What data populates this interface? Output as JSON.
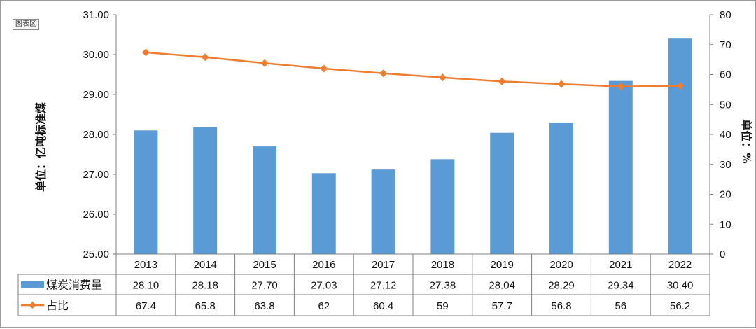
{
  "chart_area_label": "图表区",
  "chart_data": {
    "type": "bar",
    "categories": [
      "2013",
      "2014",
      "2015",
      "2016",
      "2017",
      "2018",
      "2019",
      "2020",
      "2021",
      "2022"
    ],
    "series": [
      {
        "name": "煤炭消费量",
        "type": "bar",
        "axis": "left",
        "color": "#5b9bd5",
        "values": [
          28.1,
          28.18,
          27.7,
          27.03,
          27.12,
          27.38,
          28.04,
          28.29,
          29.34,
          30.4
        ],
        "labels": [
          "28.10",
          "28.18",
          "27.70",
          "27.03",
          "27.12",
          "27.38",
          "28.04",
          "28.29",
          "29.34",
          "30.40"
        ]
      },
      {
        "name": "占比",
        "type": "line",
        "axis": "right",
        "color": "#ed7d31",
        "marker": "diamond",
        "values": [
          67.4,
          65.8,
          63.8,
          62,
          60.4,
          59,
          57.7,
          56.8,
          56,
          56.2
        ],
        "labels": [
          "67.4",
          "65.8",
          "63.8",
          "62",
          "60.4",
          "59",
          "57.7",
          "56.8",
          "56",
          "56.2"
        ]
      }
    ],
    "y_left": {
      "label": "单位：亿吨标准煤",
      "ylim": [
        25,
        31
      ],
      "ticks": [
        "25.00",
        "26.00",
        "27.00",
        "28.00",
        "29.00",
        "30.00",
        "31.00"
      ]
    },
    "y_right": {
      "label": "单位：%",
      "ylim": [
        0,
        80
      ],
      "ticks": [
        "0",
        "10",
        "20",
        "30",
        "40",
        "50",
        "60",
        "70",
        "80"
      ]
    },
    "data_table": true,
    "grid": false
  }
}
